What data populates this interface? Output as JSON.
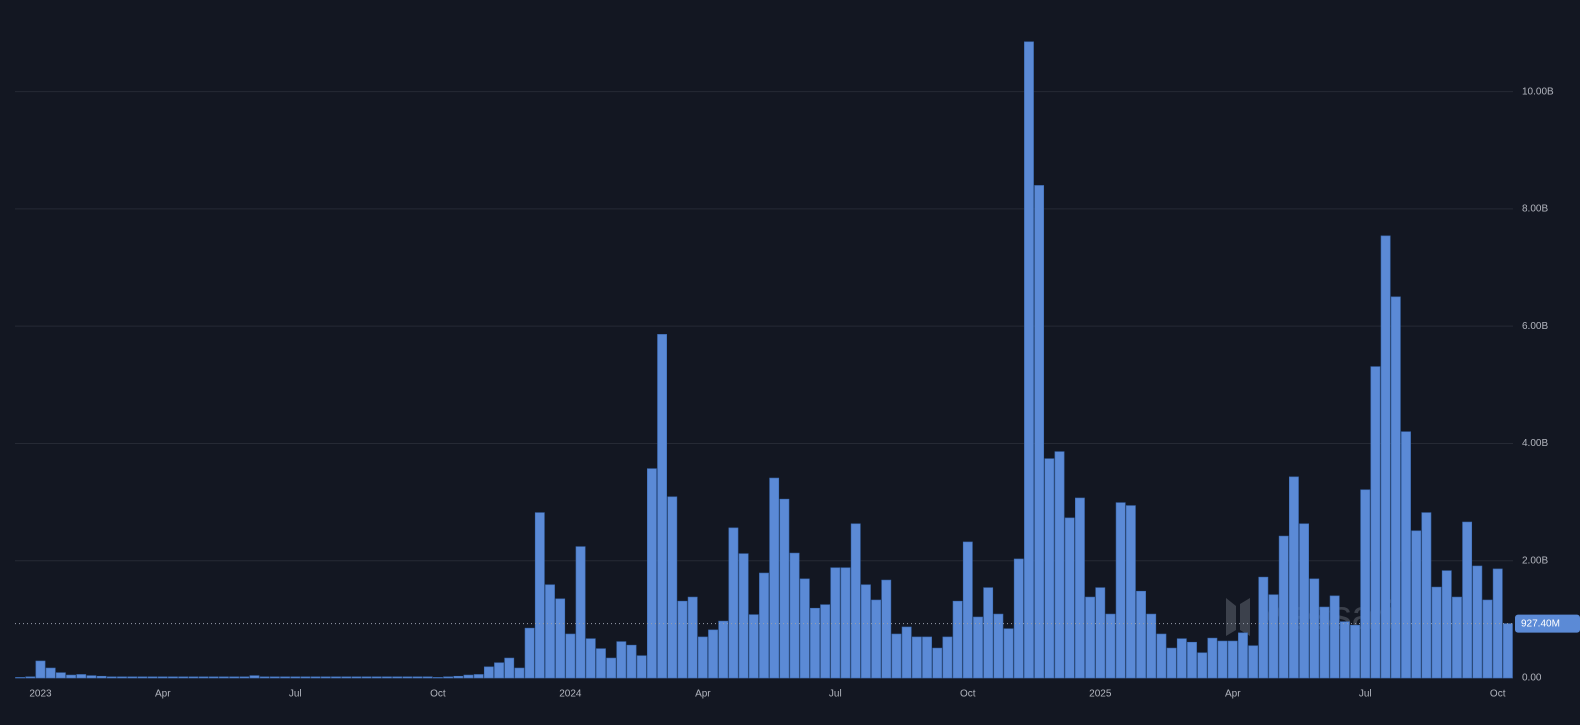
{
  "chart_data": {
    "type": "bar",
    "categories": [
      null,
      null,
      "2023",
      null,
      null,
      null,
      null,
      null,
      null,
      null,
      null,
      null,
      null,
      null,
      "Apr",
      null,
      null,
      null,
      null,
      null,
      null,
      null,
      null,
      null,
      null,
      null,
      null,
      "Jul",
      null,
      null,
      null,
      null,
      null,
      null,
      null,
      null,
      null,
      null,
      null,
      null,
      null,
      "Oct",
      null,
      null,
      null,
      null,
      null,
      null,
      null,
      null,
      null,
      null,
      null,
      null,
      "2024",
      null,
      null,
      null,
      null,
      null,
      null,
      null,
      null,
      null,
      null,
      null,
      null,
      "Apr",
      null,
      null,
      null,
      null,
      null,
      null,
      null,
      null,
      null,
      null,
      null,
      null,
      "Jul",
      null,
      null,
      null,
      null,
      null,
      null,
      null,
      null,
      null,
      null,
      null,
      null,
      "Oct",
      null,
      null,
      null,
      null,
      null,
      null,
      null,
      null,
      null,
      null,
      null,
      null,
      "2025",
      null,
      null,
      null,
      null,
      null,
      null,
      null,
      null,
      null,
      null,
      null,
      null,
      "Apr",
      null,
      null,
      null,
      null,
      null,
      null,
      null,
      null,
      null,
      null,
      null,
      null,
      "Jul",
      null,
      null,
      null,
      null,
      null,
      null,
      null,
      null,
      null,
      null,
      null,
      null,
      "Oct",
      null
    ],
    "values": [
      0.01,
      0.02,
      0.29,
      0.17,
      0.09,
      0.05,
      0.06,
      0.04,
      0.03,
      0.02,
      0.02,
      0.02,
      0.02,
      0.02,
      0.02,
      0.02,
      0.02,
      0.02,
      0.02,
      0.02,
      0.02,
      0.02,
      0.02,
      0.04,
      0.02,
      0.02,
      0.02,
      0.02,
      0.02,
      0.02,
      0.02,
      0.02,
      0.02,
      0.02,
      0.02,
      0.02,
      0.02,
      0.02,
      0.02,
      0.02,
      0.02,
      0.01,
      0.02,
      0.03,
      0.05,
      0.06,
      0.19,
      0.26,
      0.34,
      0.17,
      0.85,
      2.82,
      1.59,
      1.35,
      0.75,
      2.24,
      0.67,
      0.5,
      0.34,
      0.62,
      0.56,
      0.38,
      3.57,
      5.86,
      3.09,
      1.31,
      1.38,
      0.7,
      0.82,
      0.97,
      2.56,
      2.12,
      1.08,
      1.79,
      3.41,
      3.05,
      2.13,
      1.69,
      1.19,
      1.25,
      1.88,
      1.88,
      2.63,
      1.59,
      1.33,
      1.67,
      0.75,
      0.87,
      0.7,
      0.7,
      0.51,
      0.7,
      1.31,
      2.32,
      1.04,
      1.54,
      1.09,
      0.84,
      2.03,
      10.85,
      8.4,
      3.74,
      3.86,
      2.73,
      3.07,
      1.38,
      1.54,
      1.09,
      2.99,
      2.94,
      1.48,
      1.09,
      0.75,
      0.51,
      0.67,
      0.61,
      0.43,
      0.68,
      0.63,
      0.63,
      0.77,
      0.55,
      1.72,
      1.42,
      2.42,
      3.43,
      2.63,
      1.69,
      1.21,
      1.4,
      0.96,
      0.9,
      3.21,
      5.31,
      7.54,
      6.5,
      4.2,
      2.51,
      2.82,
      1.55,
      1.83,
      1.38,
      2.66,
      1.91,
      1.33,
      1.86,
      0.9274
    ],
    "color": "#5b8ad6",
    "ylim": [
      0,
      11
    ],
    "yticks": [
      {
        "value": 0,
        "label": "0.00"
      },
      {
        "value": 2,
        "label": "2.00B"
      },
      {
        "value": 4,
        "label": "4.00B"
      },
      {
        "value": 6,
        "label": "6.00B"
      },
      {
        "value": 8,
        "label": "8.00B"
      },
      {
        "value": 10,
        "label": "10.00B"
      }
    ],
    "grid": true,
    "reference_line": {
      "value": 0.9274,
      "label": "927.40M"
    },
    "watermark": "Messari"
  }
}
